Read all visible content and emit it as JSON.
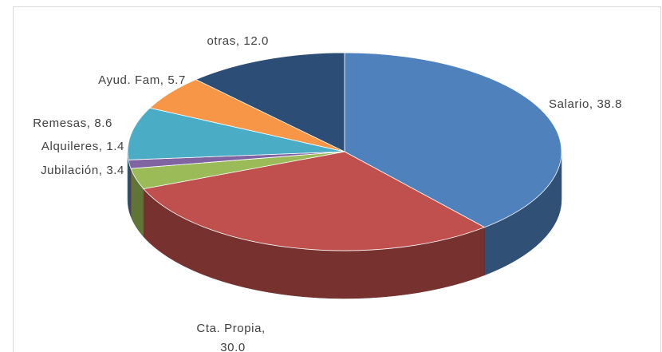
{
  "chart_data": {
    "type": "pie3d",
    "categories": [
      "Salario",
      "Cta. Propia",
      "Jubilación",
      "Alquileres",
      "Remesas",
      "Ayud. Fam",
      "otras"
    ],
    "values": [
      38.8,
      30,
      3.4,
      1.4,
      8.6,
      5.7,
      12
    ],
    "value_labels": [
      "38.8",
      "30.0",
      "3.4",
      "1.4",
      "8.6",
      "5.7",
      "12.0"
    ],
    "label_separator": ", ",
    "colors": [
      "#4f81bd",
      "#c0504d",
      "#9bbb59",
      "#8064a2",
      "#4bacc6",
      "#f79646",
      "#2c4d75"
    ]
  }
}
